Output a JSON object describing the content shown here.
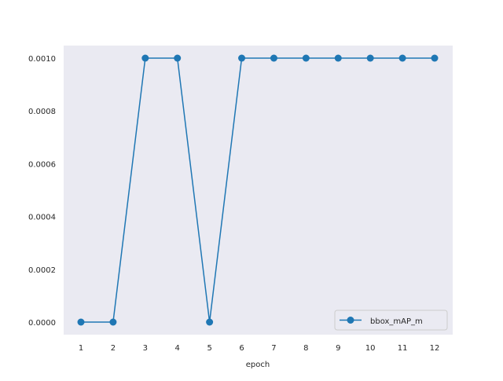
{
  "chart_data": {
    "type": "line",
    "title": "",
    "xlabel": "epoch",
    "ylabel": "",
    "x": [
      1,
      2,
      3,
      4,
      5,
      6,
      7,
      8,
      9,
      10,
      11,
      12
    ],
    "xticks": [
      "1",
      "2",
      "3",
      "4",
      "5",
      "6",
      "7",
      "8",
      "9",
      "10",
      "11",
      "12"
    ],
    "yticks": [
      "0.0000",
      "0.0002",
      "0.0004",
      "0.0006",
      "0.0008",
      "0.0010"
    ],
    "ylim": [
      0,
      0.001
    ],
    "grid": false,
    "legend_position": "lower-right",
    "series": [
      {
        "name": "bbox_mAP_m",
        "values": [
          0,
          0,
          0.001,
          0.001,
          0,
          0.001,
          0.001,
          0.001,
          0.001,
          0.001,
          0.001,
          0.001
        ],
        "color": "#1f77b4",
        "marker": "circle"
      }
    ],
    "background_color": "#eaeaf2"
  }
}
